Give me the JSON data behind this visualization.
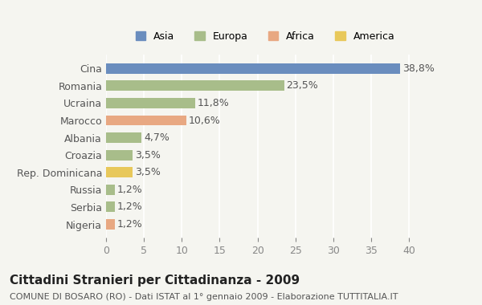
{
  "categories": [
    "Cina",
    "Romania",
    "Ucraina",
    "Marocco",
    "Albania",
    "Croazia",
    "Rep. Dominicana",
    "Russia",
    "Serbia",
    "Nigeria"
  ],
  "values": [
    38.8,
    23.5,
    11.8,
    10.6,
    4.7,
    3.5,
    3.5,
    1.2,
    1.2,
    1.2
  ],
  "labels": [
    "38,8%",
    "23,5%",
    "11,8%",
    "10,6%",
    "4,7%",
    "3,5%",
    "3,5%",
    "1,2%",
    "1,2%",
    "1,2%"
  ],
  "colors": [
    "#6a8dbe",
    "#a8bd8a",
    "#a8bd8a",
    "#e8a882",
    "#a8bd8a",
    "#a8bd8a",
    "#e8c85a",
    "#a8bd8a",
    "#a8bd8a",
    "#e8a882"
  ],
  "legend_labels": [
    "Asia",
    "Europa",
    "Africa",
    "America"
  ],
  "legend_colors": [
    "#6a8dbe",
    "#a8bd8a",
    "#e8a882",
    "#e8c85a"
  ],
  "xlim": [
    0,
    42
  ],
  "xticks": [
    0,
    5,
    10,
    15,
    20,
    25,
    30,
    35,
    40
  ],
  "title": "Cittadini Stranieri per Cittadinanza - 2009",
  "subtitle": "COMUNE DI BOSARO (RO) - Dati ISTAT al 1° gennaio 2009 - Elaborazione TUTTITALIA.IT",
  "bg_color": "#f5f5f0",
  "bar_height": 0.6,
  "label_fontsize": 9,
  "title_fontsize": 11,
  "subtitle_fontsize": 8
}
